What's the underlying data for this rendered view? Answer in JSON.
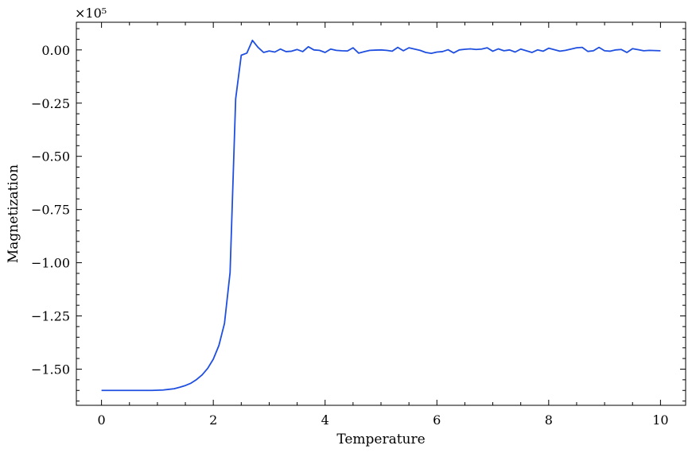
{
  "chart_data": {
    "type": "line",
    "title": "",
    "xlabel": "Temperature",
    "ylabel": "Magnetization",
    "xlim": [
      -0.45,
      10.45
    ],
    "ylim": [
      -1.67,
      0.13
    ],
    "y_offset_label": "×10⁵",
    "x_ticks": [
      0,
      2,
      4,
      6,
      8,
      10
    ],
    "x_tick_labels": [
      "0",
      "2",
      "4",
      "6",
      "8",
      "10"
    ],
    "y_ticks": [
      0.0,
      -0.25,
      -0.5,
      -0.75,
      -1.0,
      -1.25,
      -1.5
    ],
    "y_tick_labels": [
      "0.00",
      "−0.25",
      "−0.50",
      "−0.75",
      "−1.00",
      "−1.25",
      "−1.50"
    ],
    "grid": false,
    "series": [
      {
        "color": "#1f4fe0",
        "x": [
          0,
          0.1,
          0.2,
          0.3,
          0.4,
          0.5,
          0.6,
          0.7,
          0.8,
          0.9,
          1.0,
          1.1,
          1.2,
          1.3,
          1.4,
          1.5,
          1.6,
          1.7,
          1.8,
          1.9,
          2.0,
          2.1,
          2.2,
          2.3,
          2.4,
          2.5,
          2.6,
          2.7,
          2.8,
          2.9,
          3.0,
          3.1,
          3.2,
          3.3,
          3.4,
          3.5,
          3.6,
          3.7,
          3.8,
          3.9,
          4.0,
          4.1,
          4.2,
          4.3,
          4.4,
          4.5,
          4.6,
          4.7,
          4.8,
          4.9,
          5.0,
          5.1,
          5.2,
          5.3,
          5.4,
          5.5,
          5.6,
          5.7,
          5.8,
          5.9,
          6.0,
          6.1,
          6.2,
          6.3,
          6.4,
          6.5,
          6.6,
          6.7,
          6.8,
          6.9,
          7.0,
          7.1,
          7.2,
          7.3,
          7.4,
          7.5,
          7.6,
          7.7,
          7.8,
          7.9,
          8.0,
          8.1,
          8.2,
          8.3,
          8.4,
          8.5,
          8.6,
          8.7,
          8.8,
          8.9,
          9.0,
          9.1,
          9.2,
          9.3,
          9.4,
          9.5,
          9.6,
          9.7,
          9.8,
          9.9,
          10.0
        ],
        "y": [
          -1.6,
          -1.6,
          -1.6,
          -1.6,
          -1.6,
          -1.6,
          -1.6,
          -1.6,
          -1.6,
          -1.6,
          -1.599,
          -1.598,
          -1.595,
          -1.592,
          -1.585,
          -1.577,
          -1.566,
          -1.549,
          -1.527,
          -1.496,
          -1.453,
          -1.389,
          -1.285,
          -1.046,
          -0.23,
          -0.025,
          -0.015,
          0.045,
          0.012,
          -0.012,
          -0.005,
          -0.01,
          0.004,
          -0.008,
          -0.006,
          0.002,
          -0.008,
          0.015,
          0.0,
          -0.002,
          -0.012,
          0.004,
          -0.002,
          -0.004,
          -0.005,
          0.01,
          -0.015,
          -0.008,
          -0.002,
          -0.001,
          0.0,
          -0.002,
          -0.006,
          0.012,
          -0.004,
          0.01,
          0.004,
          -0.002,
          -0.012,
          -0.016,
          -0.01,
          -0.008,
          0.001,
          -0.014,
          0.0,
          0.003,
          0.005,
          0.002,
          0.004,
          0.01,
          -0.006,
          0.005,
          -0.004,
          0.0,
          -0.01,
          0.004,
          -0.004,
          -0.012,
          0.0,
          -0.006,
          0.008,
          0.001,
          -0.006,
          -0.002,
          0.004,
          0.01,
          0.012,
          -0.007,
          -0.004,
          0.012,
          -0.004,
          -0.006,
          0.0,
          0.002,
          -0.012,
          0.006,
          0.001,
          -0.004,
          -0.002,
          -0.003,
          -0.004
        ]
      }
    ]
  }
}
